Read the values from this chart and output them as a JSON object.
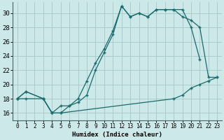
{
  "xlabel": "Humidex (Indice chaleur)",
  "xlim": [
    -0.5,
    23.5
  ],
  "ylim": [
    15.0,
    31.5
  ],
  "background_color": "#cce8e8",
  "grid_color": "#aacccc",
  "line_color": "#1a6b6b",
  "xticks": [
    0,
    1,
    2,
    3,
    4,
    5,
    6,
    7,
    8,
    9,
    10,
    11,
    12,
    13,
    14,
    15,
    16,
    17,
    18,
    19,
    20,
    21,
    22,
    23
  ],
  "yticks": [
    16,
    18,
    20,
    22,
    24,
    26,
    28,
    30
  ],
  "line1_x": [
    0,
    1,
    3,
    4,
    5,
    6,
    7,
    8,
    9,
    10,
    11,
    12,
    13,
    14,
    15,
    16,
    17,
    18,
    19,
    20,
    21
  ],
  "line1_y": [
    18,
    19,
    18,
    16,
    17,
    17,
    18,
    20.5,
    23,
    25,
    27.5,
    31,
    29.5,
    30,
    29.5,
    30.5,
    30.5,
    30.5,
    30.5,
    28,
    23.5
  ],
  "line2_x": [
    0,
    1,
    3,
    4,
    5,
    6,
    7,
    8,
    9,
    10,
    11,
    12,
    13,
    14,
    15,
    16,
    17,
    18,
    19,
    20,
    21,
    22,
    23
  ],
  "line2_y": [
    18,
    19,
    18,
    16,
    16,
    17,
    17.5,
    18.5,
    22,
    24.5,
    27,
    31,
    29.5,
    30,
    29.5,
    30.5,
    30.5,
    30.5,
    29.5,
    29,
    28,
    21,
    21
  ],
  "line3_x": [
    0,
    1,
    3,
    4,
    5,
    18,
    19,
    20,
    21,
    22,
    23
  ],
  "line3_y": [
    18,
    18,
    18,
    16,
    16,
    18,
    18.5,
    19.5,
    20,
    20.5,
    21
  ]
}
